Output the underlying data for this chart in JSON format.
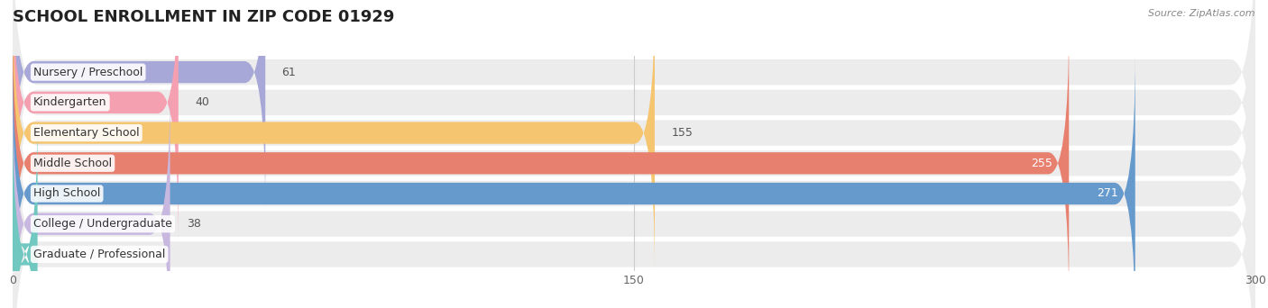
{
  "title": "SCHOOL ENROLLMENT IN ZIP CODE 01929",
  "source": "Source: ZipAtlas.com",
  "categories": [
    "Nursery / Preschool",
    "Kindergarten",
    "Elementary School",
    "Middle School",
    "High School",
    "College / Undergraduate",
    "Graduate / Professional"
  ],
  "values": [
    61,
    40,
    155,
    255,
    271,
    38,
    0
  ],
  "bar_colors": [
    "#a8a8d8",
    "#f4a0b0",
    "#f5c570",
    "#e88070",
    "#6699cc",
    "#c8b8e0",
    "#70c8c0"
  ],
  "xlim": [
    0,
    300
  ],
  "xticks": [
    0,
    150,
    300
  ],
  "title_fontsize": 13,
  "label_fontsize": 9,
  "value_fontsize": 9,
  "background_color": "#ffffff"
}
